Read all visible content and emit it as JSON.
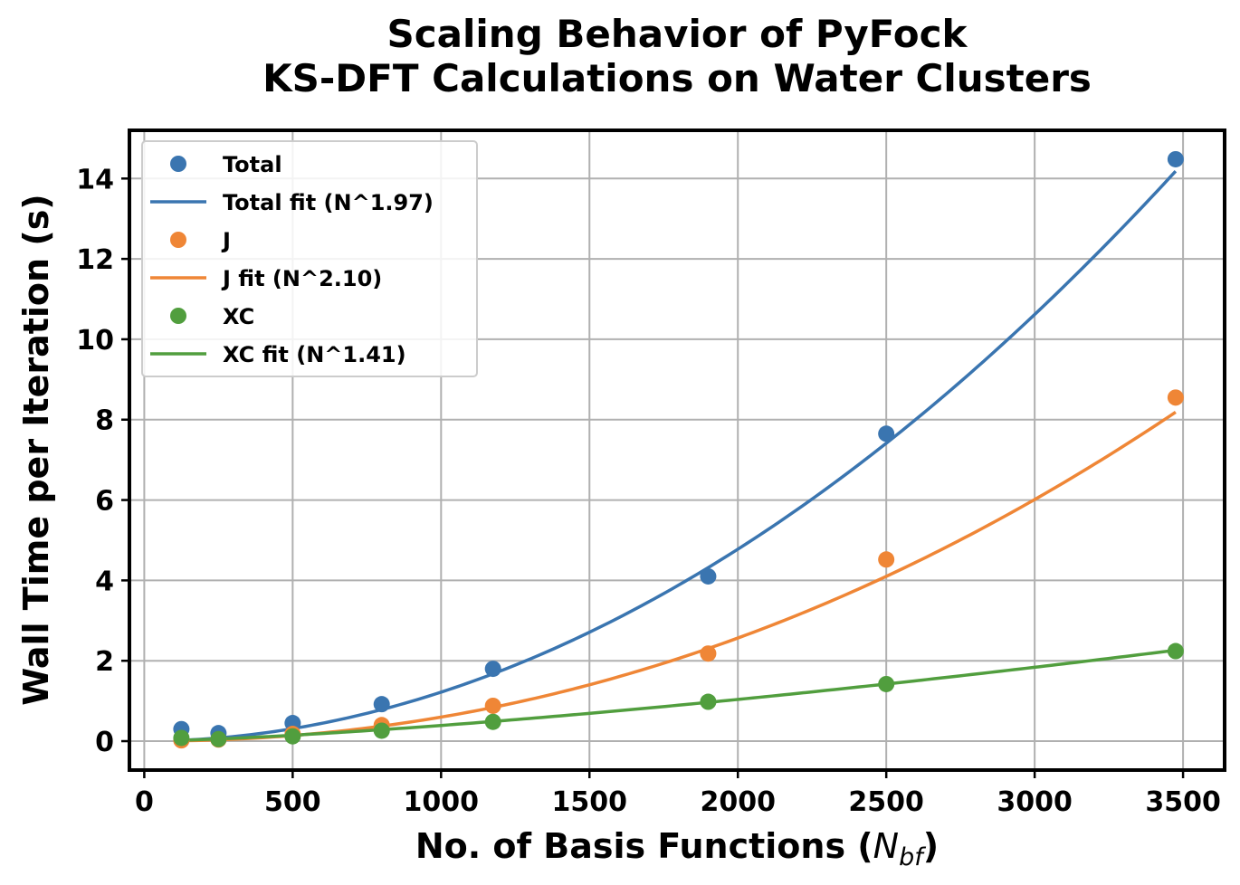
{
  "chart_data": {
    "type": "scatter",
    "title_lines": [
      "Scaling Behavior of PyFock",
      "KS-DFT Calculations on Water Clusters"
    ],
    "xlabel_main": "No. of Basis Functions (",
    "xlabel_sym": "N",
    "xlabel_sub": "bf",
    "xlabel_close": ")",
    "ylabel": "Wall Time per Iteration (s)",
    "xlim": [
      -50,
      3640
    ],
    "ylim": [
      -0.72,
      15.2
    ],
    "xticks": [
      0,
      500,
      1000,
      1500,
      2000,
      2500,
      3000,
      3500
    ],
    "yticks": [
      0,
      2,
      4,
      6,
      8,
      10,
      12,
      14
    ],
    "grid": true,
    "legend_position": "upper-left",
    "x": [
      125,
      250,
      500,
      800,
      1175,
      1900,
      2500,
      3475
    ],
    "series": [
      {
        "name": "Total",
        "color": "#3a75b0",
        "values": [
          0.3,
          0.2,
          0.45,
          0.92,
          1.8,
          4.1,
          7.65,
          14.48
        ]
      },
      {
        "name": "J",
        "color": "#ef8636",
        "values": [
          0.02,
          0.04,
          0.18,
          0.4,
          0.88,
          2.18,
          4.52,
          8.55
        ]
      },
      {
        "name": "XC",
        "color": "#519e3e",
        "values": [
          0.08,
          0.05,
          0.12,
          0.26,
          0.48,
          0.98,
          1.42,
          2.24
        ]
      }
    ],
    "fits": [
      {
        "name": "Total fit (N^1.97)",
        "color": "#3a75b0",
        "coef": 1.5e-06,
        "exponent": 1.97
      },
      {
        "name": "J fit (N^2.10)",
        "color": "#ef8636",
        "coef": 3e-07,
        "exponent": 2.1
      },
      {
        "name": "XC fit (N^1.41)",
        "color": "#519e3e",
        "coef": 2.3e-05,
        "exponent": 1.41
      }
    ]
  }
}
